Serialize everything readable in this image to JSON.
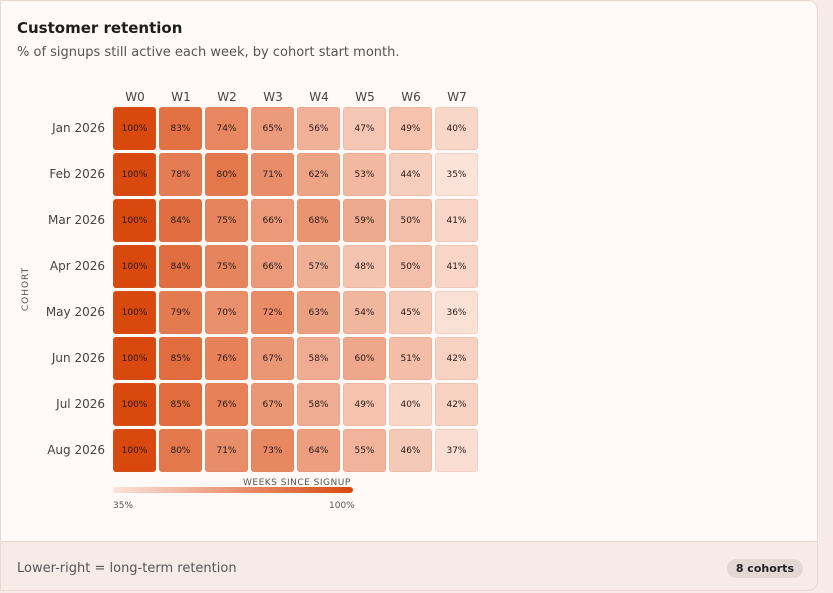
{
  "card": {
    "title": "Customer retention",
    "subtitle": "% of signups still active each week, by cohort start month."
  },
  "chart_data": {
    "type": "heatmap",
    "ylabel": "COHORT",
    "xlabel": "WEEKS SINCE SIGNUP",
    "columns": [
      "W0",
      "W1",
      "W2",
      "W3",
      "W4",
      "W5",
      "W6",
      "W7"
    ],
    "rows": [
      "Jan 2026",
      "Feb 2026",
      "Mar 2026",
      "Apr 2026",
      "May 2026",
      "Jun 2026",
      "Jul 2026",
      "Aug 2026"
    ],
    "values": [
      [
        100,
        83,
        74,
        65,
        56,
        47,
        49,
        40
      ],
      [
        100,
        78,
        80,
        71,
        62,
        53,
        44,
        35
      ],
      [
        100,
        84,
        75,
        66,
        68,
        59,
        50,
        41
      ],
      [
        100,
        84,
        75,
        66,
        57,
        48,
        50,
        41
      ],
      [
        100,
        79,
        70,
        72,
        63,
        54,
        45,
        36
      ],
      [
        100,
        85,
        76,
        67,
        58,
        60,
        51,
        42
      ],
      [
        100,
        85,
        76,
        67,
        58,
        49,
        40,
        42
      ],
      [
        100,
        80,
        71,
        73,
        64,
        55,
        46,
        37
      ]
    ],
    "scale_min_label": "35%",
    "scale_max_label": "100%",
    "scale_range": [
      35,
      100
    ],
    "color_low": "#fbe3d9",
    "color_high": "#d9480f"
  },
  "footer": {
    "note": "Lower-right = long-term retention",
    "badge": "8 cohorts"
  }
}
